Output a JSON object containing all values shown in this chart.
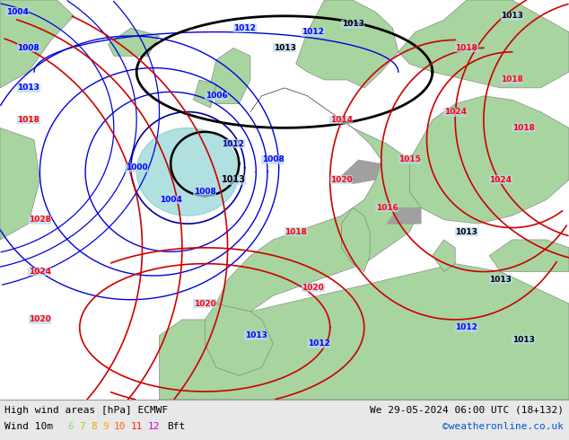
{
  "title_left": "High wind areas [hPa] ECMWF",
  "title_right": "We 29-05-2024 06:00 UTC (18+132)",
  "subtitle_left": "Wind 10m",
  "legend_numbers": [
    "6",
    "7",
    "8",
    "9",
    "10",
    "11",
    "12"
  ],
  "legend_colors": [
    "#88dd88",
    "#aacc00",
    "#ddaa00",
    "#ffaa00",
    "#ff6600",
    "#ff2200",
    "#cc00cc"
  ],
  "legend_suffix": "Bft",
  "credit": "©weatheronline.co.uk",
  "credit_color": "#0055cc",
  "sea_color": "#b8d8f0",
  "land_color": "#a8d4a0",
  "mountain_color": "#b0a090",
  "bottom_bar_color": "#e8e8e8",
  "figsize": [
    6.34,
    4.9
  ],
  "dpi": 100
}
